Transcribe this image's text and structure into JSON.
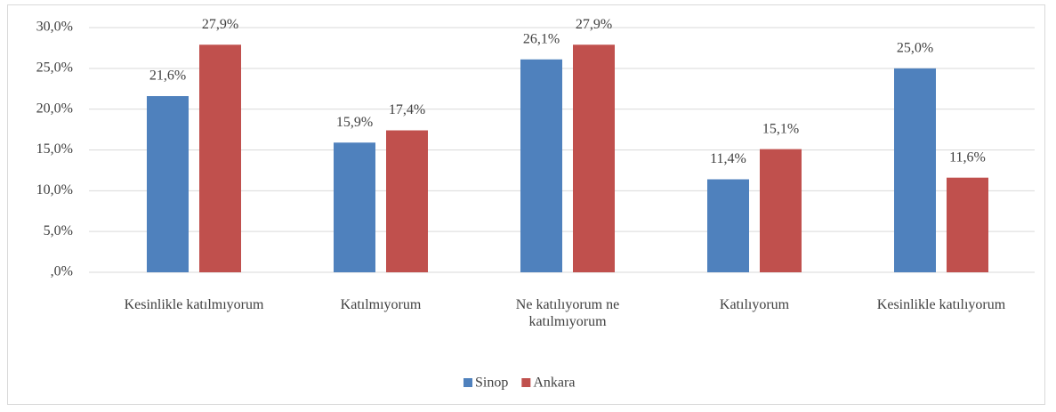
{
  "chart_data": {
    "type": "bar",
    "categories": [
      "Kesinlikle katılmıyorum",
      "Katılmıyorum",
      "Ne katılıyorum ne katılmıyorum",
      "Katılıyorum",
      "Kesinlikle katılıyorum"
    ],
    "series": [
      {
        "name": "Sinop",
        "color": "#4f81bd",
        "values": [
          21.6,
          15.9,
          26.1,
          11.4,
          25.0
        ],
        "value_labels": [
          "21,6%",
          "15,9%",
          "26,1%",
          "11,4%",
          "25,0%"
        ]
      },
      {
        "name": "Ankara",
        "color": "#c0504d",
        "values": [
          27.9,
          17.4,
          27.9,
          15.1,
          11.6
        ],
        "value_labels": [
          "27,9%",
          "17,4%",
          "27,9%",
          "15,1%",
          "11,6%"
        ]
      }
    ],
    "ylim": [
      0,
      30
    ],
    "yticks": [
      {
        "value": 0,
        "label": ",0%"
      },
      {
        "value": 5,
        "label": "5,0%"
      },
      {
        "value": 10,
        "label": "10,0%"
      },
      {
        "value": 15,
        "label": "15,0%"
      },
      {
        "value": 20,
        "label": "20,0%"
      },
      {
        "value": 25,
        "label": "25,0%"
      },
      {
        "value": 30,
        "label": "30,0%"
      }
    ],
    "grid": true,
    "legend": "bottom"
  }
}
